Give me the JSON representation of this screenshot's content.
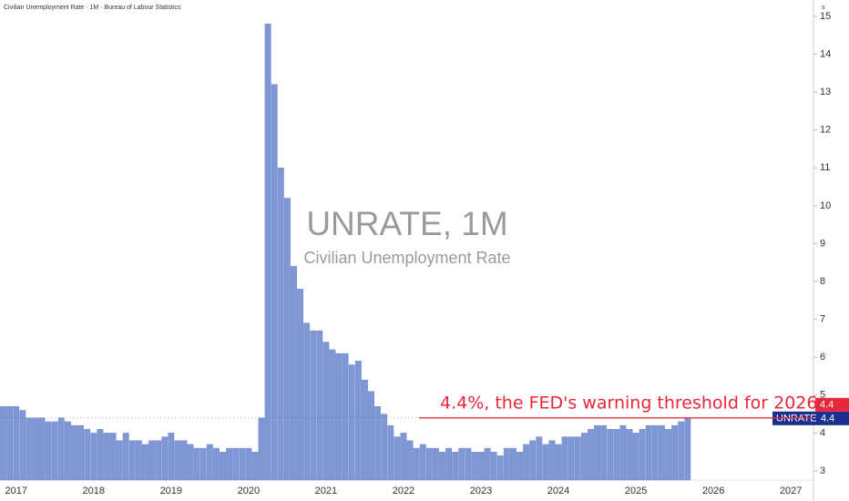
{
  "chart_data": {
    "type": "bar",
    "title": "Civilian Unemployment Rate · 1M · Bureau of Labour Statistics",
    "scale_label": "s",
    "watermark_title": "UNRATE, 1M",
    "watermark_subtitle": "Civilian Unemployment Rate",
    "series_name": "UNRATE",
    "color": "#7f97d4",
    "categories": [
      null,
      null,
      "2017",
      null,
      null,
      null,
      null,
      null,
      null,
      null,
      null,
      null,
      null,
      null,
      "2018",
      null,
      null,
      null,
      null,
      null,
      null,
      null,
      null,
      null,
      null,
      null,
      "2019",
      null,
      null,
      null,
      null,
      null,
      null,
      null,
      null,
      null,
      null,
      null,
      "2020",
      null,
      null,
      null,
      null,
      null,
      null,
      null,
      null,
      null,
      null,
      null,
      "2021",
      null,
      null,
      null,
      null,
      null,
      null,
      null,
      null,
      null,
      null,
      null,
      "2022",
      null,
      null,
      null,
      null,
      null,
      null,
      null,
      null,
      null,
      null,
      null,
      "2023",
      null,
      null,
      null,
      null,
      null,
      null,
      null,
      null,
      null,
      null,
      null,
      "2024",
      null,
      null,
      null,
      null,
      null,
      null,
      null,
      null,
      null,
      null,
      null,
      "2025",
      null,
      null,
      null,
      null,
      null,
      null,
      null,
      null,
      null,
      null,
      null,
      "2026",
      null,
      null,
      null,
      null,
      null,
      null,
      null,
      null,
      null,
      null,
      null,
      "2027",
      null,
      null,
      null
    ],
    "values": [
      4.7,
      4.7,
      4.7,
      4.6,
      4.4,
      4.4,
      4.4,
      4.3,
      4.3,
      4.4,
      4.3,
      4.2,
      4.2,
      4.1,
      4.0,
      4.1,
      4.0,
      4.0,
      3.8,
      4.0,
      3.8,
      3.8,
      3.7,
      3.8,
      3.8,
      3.9,
      4.0,
      3.8,
      3.8,
      3.7,
      3.6,
      3.6,
      3.7,
      3.6,
      3.5,
      3.6,
      3.6,
      3.6,
      3.6,
      3.5,
      4.4,
      14.8,
      13.2,
      11.0,
      10.2,
      8.4,
      7.8,
      6.9,
      6.7,
      6.7,
      6.4,
      6.2,
      6.1,
      6.1,
      5.8,
      5.9,
      5.4,
      5.1,
      4.7,
      4.5,
      4.2,
      3.9,
      4.0,
      3.8,
      3.6,
      3.7,
      3.6,
      3.6,
      3.5,
      3.6,
      3.5,
      3.6,
      3.6,
      3.5,
      3.5,
      3.6,
      3.5,
      3.4,
      3.6,
      3.6,
      3.5,
      3.7,
      3.8,
      3.9,
      3.7,
      3.8,
      3.7,
      3.9,
      3.9,
      3.9,
      4.0,
      4.1,
      4.2,
      4.2,
      4.1,
      4.1,
      4.2,
      4.1,
      4.0,
      4.1,
      4.2,
      4.2,
      4.2,
      4.1,
      4.2,
      4.3,
      4.4,
      null,
      null,
      null,
      null,
      null,
      null,
      null,
      null,
      null,
      null,
      null,
      null,
      null,
      null,
      null,
      null,
      null,
      null,
      null
    ],
    "ylim": [
      2.76,
      15.43
    ],
    "yticks": [
      3,
      4,
      5,
      6,
      7,
      8,
      9,
      10,
      11,
      12,
      13,
      14,
      15
    ],
    "threshold": {
      "value": 4.4,
      "label": "4.4%, the FED's warning threshold for 2026",
      "color": "#e8273a"
    },
    "last_value_color": "#1b2f8f"
  }
}
